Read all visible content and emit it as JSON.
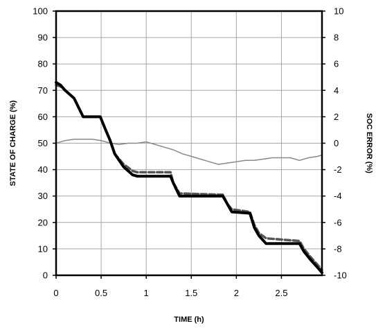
{
  "chart_data": {
    "type": "line",
    "title": "",
    "xlabel": "TIME (h)",
    "ylabel": "STATE OF CHARGE  (%)",
    "y2label": "SOC ERROR (%)",
    "xlim": [
      0,
      2.95
    ],
    "ylim": [
      0,
      100
    ],
    "y2lim": [
      -10,
      10
    ],
    "x_ticks": [
      "0",
      "0.5",
      "1",
      "1.5",
      "2",
      "2.5"
    ],
    "y_ticks": [
      "0",
      "10",
      "20",
      "30",
      "40",
      "50",
      "60",
      "70",
      "80",
      "90",
      "100"
    ],
    "y2_ticks": [
      "-10",
      "-8",
      "-6",
      "-4",
      "-2",
      "0",
      "2",
      "4",
      "6",
      "8",
      "10"
    ],
    "grid": true,
    "series": [
      {
        "axis": "left",
        "color": "#000000",
        "style": "solid",
        "points": [
          [
            0,
            73
          ],
          [
            0.05,
            72
          ],
          [
            0.1,
            70
          ],
          [
            0.2,
            67
          ],
          [
            0.3,
            60
          ],
          [
            0.49,
            60
          ],
          [
            0.55,
            55
          ],
          [
            0.6,
            51
          ],
          [
            0.65,
            46
          ],
          [
            0.75,
            41
          ],
          [
            0.85,
            38
          ],
          [
            0.9,
            37.5
          ],
          [
            1.27,
            37.5
          ],
          [
            1.3,
            35
          ],
          [
            1.37,
            30
          ],
          [
            1.85,
            30
          ],
          [
            1.9,
            27
          ],
          [
            1.95,
            24
          ],
          [
            2.15,
            23.5
          ],
          [
            2.2,
            18
          ],
          [
            2.25,
            15
          ],
          [
            2.33,
            12
          ],
          [
            2.7,
            12
          ],
          [
            2.75,
            9
          ],
          [
            2.82,
            6
          ],
          [
            2.9,
            3
          ],
          [
            2.95,
            1
          ]
        ]
      },
      {
        "axis": "left",
        "color": "#555555",
        "style": "dashed",
        "points": [
          [
            0,
            72
          ],
          [
            0.05,
            71.5
          ],
          [
            0.1,
            70
          ],
          [
            0.2,
            67
          ],
          [
            0.3,
            60
          ],
          [
            0.49,
            60
          ],
          [
            0.55,
            55
          ],
          [
            0.6,
            51
          ],
          [
            0.65,
            46
          ],
          [
            0.75,
            42
          ],
          [
            0.85,
            39.5
          ],
          [
            0.9,
            39
          ],
          [
            1.27,
            39
          ],
          [
            1.3,
            35
          ],
          [
            1.37,
            31
          ],
          [
            1.85,
            30.5
          ],
          [
            1.9,
            27
          ],
          [
            1.95,
            25
          ],
          [
            2.15,
            24
          ],
          [
            2.2,
            19
          ],
          [
            2.25,
            16
          ],
          [
            2.33,
            14
          ],
          [
            2.7,
            13
          ],
          [
            2.75,
            10
          ],
          [
            2.82,
            7
          ],
          [
            2.9,
            4
          ],
          [
            2.95,
            2
          ]
        ]
      },
      {
        "axis": "right",
        "color": "#888888",
        "style": "solid",
        "points": [
          [
            0,
            0
          ],
          [
            0.1,
            0.2
          ],
          [
            0.2,
            0.3
          ],
          [
            0.3,
            0.3
          ],
          [
            0.4,
            0.3
          ],
          [
            0.5,
            0.2
          ],
          [
            0.6,
            0
          ],
          [
            0.7,
            -0.1
          ],
          [
            0.8,
            0
          ],
          [
            0.9,
            0
          ],
          [
            1,
            0.1
          ],
          [
            1.1,
            -0.1
          ],
          [
            1.2,
            -0.3
          ],
          [
            1.3,
            -0.5
          ],
          [
            1.4,
            -0.8
          ],
          [
            1.5,
            -1
          ],
          [
            1.6,
            -1.2
          ],
          [
            1.7,
            -1.4
          ],
          [
            1.8,
            -1.6
          ],
          [
            1.9,
            -1.5
          ],
          [
            2.0,
            -1.4
          ],
          [
            2.1,
            -1.3
          ],
          [
            2.2,
            -1.3
          ],
          [
            2.3,
            -1.2
          ],
          [
            2.4,
            -1.1
          ],
          [
            2.5,
            -1.1
          ],
          [
            2.6,
            -1.1
          ],
          [
            2.7,
            -1.3
          ],
          [
            2.8,
            -1.1
          ],
          [
            2.9,
            -1
          ],
          [
            2.95,
            -0.9
          ]
        ]
      }
    ]
  }
}
